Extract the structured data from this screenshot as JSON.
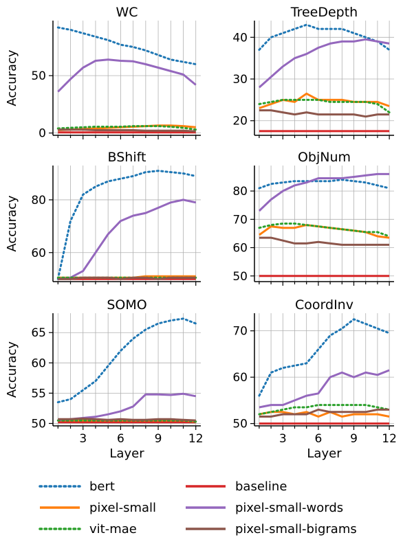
{
  "figure": {
    "y_label": "Accuracy",
    "x_label": "Layer"
  },
  "legend": {
    "entries": [
      {
        "name": "bert",
        "color": "#1f77b4",
        "dashed": true
      },
      {
        "name": "baseline",
        "color": "#d62728",
        "dashed": false
      },
      {
        "name": "pixel-small",
        "color": "#ff7f0e",
        "dashed": false
      },
      {
        "name": "pixel-small-words",
        "color": "#9467bd",
        "dashed": false
      },
      {
        "name": "vit-mae",
        "color": "#2ca02c",
        "dashed": true
      },
      {
        "name": "pixel-small-bigrams",
        "color": "#8c564b",
        "dashed": false
      }
    ]
  },
  "chart_data": [
    {
      "type": "line",
      "title": "WC",
      "x": [
        1,
        2,
        3,
        4,
        5,
        6,
        7,
        8,
        9,
        10,
        11,
        12
      ],
      "xlim": [
        0.6,
        12.4
      ],
      "ylim": [
        -2,
        98
      ],
      "yticks": [
        0,
        50
      ],
      "xticks": [
        3,
        6,
        9,
        12
      ],
      "xlabel": "",
      "ylabel": "Accuracy",
      "series": [
        {
          "name": "bert",
          "values": [
            92,
            90,
            87,
            84,
            81,
            77,
            75,
            72,
            68,
            64,
            62,
            60
          ]
        },
        {
          "name": "baseline",
          "values": [
            0.5,
            0.5,
            0.5,
            0.5,
            0.5,
            0.5,
            0.5,
            0.5,
            0.5,
            0.5,
            0.5,
            0.5
          ]
        },
        {
          "name": "pixel-small",
          "values": [
            2.5,
            3,
            3.5,
            4,
            4.5,
            5,
            5.5,
            6,
            6.5,
            6.5,
            6,
            5
          ]
        },
        {
          "name": "pixel-small-words",
          "values": [
            36,
            47,
            57,
            63,
            64,
            63,
            62.5,
            60,
            57,
            54,
            51,
            42
          ]
        },
        {
          "name": "vit-mae",
          "values": [
            4,
            4.5,
            5,
            5.5,
            5.5,
            5.5,
            6,
            6,
            6,
            5.5,
            4.5,
            3
          ]
        },
        {
          "name": "pixel-small-bigrams",
          "values": [
            3,
            3,
            3,
            2.5,
            2.5,
            2.5,
            2.5,
            2,
            2,
            2,
            2,
            1.5
          ]
        }
      ]
    },
    {
      "type": "line",
      "title": "TreeDepth",
      "x": [
        1,
        2,
        3,
        4,
        5,
        6,
        7,
        8,
        9,
        10,
        11,
        12
      ],
      "xlim": [
        0.6,
        12.4
      ],
      "ylim": [
        16.5,
        44
      ],
      "yticks": [
        20,
        30,
        40
      ],
      "xticks": [
        3,
        6,
        9,
        12
      ],
      "xlabel": "",
      "ylabel": "",
      "series": [
        {
          "name": "bert",
          "values": [
            37,
            40,
            41,
            42,
            43,
            42,
            42,
            42,
            41,
            40,
            39,
            37
          ]
        },
        {
          "name": "baseline",
          "values": [
            17.5,
            17.5,
            17.5,
            17.5,
            17.5,
            17.5,
            17.5,
            17.5,
            17.5,
            17.5,
            17.5,
            17.5
          ]
        },
        {
          "name": "pixel-small",
          "values": [
            23,
            24,
            25,
            24.5,
            26.5,
            25,
            25,
            25,
            24.5,
            24.5,
            24.5,
            23.5
          ]
        },
        {
          "name": "pixel-small-words",
          "values": [
            28,
            30.5,
            33,
            35,
            36,
            37.5,
            38.5,
            39,
            39,
            39.5,
            39,
            38.5
          ]
        },
        {
          "name": "vit-mae",
          "values": [
            24,
            24.5,
            25,
            25,
            25,
            25,
            24.5,
            24.5,
            24.5,
            24.5,
            24,
            22
          ]
        },
        {
          "name": "pixel-small-bigrams",
          "values": [
            22.5,
            22.5,
            22,
            21.5,
            22,
            21.5,
            21.5,
            21.5,
            21.5,
            21,
            21.5,
            21.5
          ]
        }
      ]
    },
    {
      "type": "line",
      "title": "BShift",
      "x": [
        1,
        2,
        3,
        4,
        5,
        6,
        7,
        8,
        9,
        10,
        11,
        12
      ],
      "xlim": [
        0.6,
        12.4
      ],
      "ylim": [
        49,
        93
      ],
      "yticks": [
        60,
        80
      ],
      "xticks": [
        3,
        6,
        9,
        12
      ],
      "xlabel": "",
      "ylabel": "Accuracy",
      "series": [
        {
          "name": "bert",
          "values": [
            50,
            72,
            82,
            85,
            87,
            88,
            89,
            90.5,
            91,
            90.5,
            90,
            89
          ]
        },
        {
          "name": "baseline",
          "values": [
            50,
            50,
            50,
            50,
            50,
            50,
            50,
            50,
            50,
            50,
            50,
            50
          ]
        },
        {
          "name": "pixel-small",
          "values": [
            50.5,
            50.5,
            50.5,
            50.5,
            50.5,
            50.5,
            50.5,
            51,
            51,
            51,
            51,
            51
          ]
        },
        {
          "name": "pixel-small-words",
          "values": [
            50,
            50.5,
            53,
            60,
            67,
            72,
            74,
            75,
            77,
            79,
            80,
            79
          ]
        },
        {
          "name": "vit-mae",
          "values": [
            50.5,
            50.5,
            50.5,
            50.5,
            50.5,
            50.5,
            50.5,
            50.5,
            50.5,
            50.5,
            50.5,
            50.5
          ]
        },
        {
          "name": "pixel-small-bigrams",
          "values": [
            50,
            50,
            50.5,
            50.5,
            50.5,
            50,
            50.5,
            50.5,
            50,
            50.5,
            50.5,
            50.5
          ]
        }
      ]
    },
    {
      "type": "line",
      "title": "ObjNum",
      "x": [
        1,
        2,
        3,
        4,
        5,
        6,
        7,
        8,
        9,
        10,
        11,
        12
      ],
      "xlim": [
        0.6,
        12.4
      ],
      "ylim": [
        48,
        89
      ],
      "yticks": [
        50,
        60,
        70,
        80
      ],
      "xticks": [
        3,
        6,
        9,
        12
      ],
      "xlabel": "",
      "ylabel": "",
      "series": [
        {
          "name": "bert",
          "values": [
            81,
            82.5,
            83,
            83.5,
            83.5,
            83.5,
            83.5,
            84,
            83.5,
            83,
            82,
            81
          ]
        },
        {
          "name": "baseline",
          "values": [
            50,
            50,
            50,
            50,
            50,
            50,
            50,
            50,
            50,
            50,
            50,
            50
          ]
        },
        {
          "name": "pixel-small",
          "values": [
            64.5,
            67.5,
            67,
            67,
            68,
            67.5,
            67,
            66.5,
            66,
            65.5,
            64,
            63.5
          ]
        },
        {
          "name": "pixel-small-words",
          "values": [
            73,
            77,
            80,
            82,
            83,
            84.5,
            84.5,
            84.5,
            85,
            85.5,
            86,
            86
          ]
        },
        {
          "name": "vit-mae",
          "values": [
            67,
            68,
            68.5,
            68.5,
            68,
            67.5,
            67,
            66.5,
            66,
            65.5,
            65.5,
            64
          ]
        },
        {
          "name": "pixel-small-bigrams",
          "values": [
            63.5,
            63.5,
            62.5,
            61.5,
            61.5,
            62,
            61.5,
            61,
            61,
            61,
            61,
            61
          ]
        }
      ]
    },
    {
      "type": "line",
      "title": "SOMO",
      "x": [
        1,
        2,
        3,
        4,
        5,
        6,
        7,
        8,
        9,
        10,
        11,
        12
      ],
      "xlim": [
        0.6,
        12.4
      ],
      "ylim": [
        49.6,
        68.2
      ],
      "yticks": [
        50,
        55,
        60,
        65
      ],
      "xticks": [
        3,
        6,
        9,
        12
      ],
      "xlabel": "Layer",
      "ylabel": "Accuracy",
      "series": [
        {
          "name": "bert",
          "values": [
            53.5,
            54,
            55.5,
            57,
            59.5,
            62,
            64,
            65.5,
            66.5,
            67,
            67.3,
            66.5
          ]
        },
        {
          "name": "baseline",
          "values": [
            50.2,
            50.2,
            50.2,
            50.2,
            50.2,
            50.2,
            50.2,
            50.2,
            50.2,
            50.2,
            50.2,
            50.2
          ]
        },
        {
          "name": "pixel-small",
          "values": [
            50.5,
            50.5,
            50.5,
            50.5,
            50.5,
            50.5,
            50.5,
            50.5,
            50.5,
            50.5,
            50.5,
            50.3
          ]
        },
        {
          "name": "pixel-small-words",
          "values": [
            50.5,
            50.7,
            50.9,
            51.1,
            51.5,
            52,
            52.8,
            54.8,
            54.8,
            54.7,
            54.9,
            54.5
          ]
        },
        {
          "name": "vit-mae",
          "values": [
            50.5,
            50.5,
            50.5,
            50.5,
            50.5,
            50.5,
            50.5,
            50.5,
            50.5,
            50.5,
            50.5,
            50.3
          ]
        },
        {
          "name": "pixel-small-bigrams",
          "values": [
            50.7,
            50.7,
            50.8,
            50.7,
            50.6,
            50.7,
            50.6,
            50.6,
            50.7,
            50.7,
            50.6,
            50.5
          ]
        }
      ]
    },
    {
      "type": "line",
      "title": "CoordInv",
      "x": [
        1,
        2,
        3,
        4,
        5,
        6,
        7,
        8,
        9,
        10,
        11,
        12
      ],
      "xlim": [
        0.6,
        12.4
      ],
      "ylim": [
        49.5,
        73.8
      ],
      "yticks": [
        50,
        60,
        70
      ],
      "xticks": [
        3,
        6,
        9,
        12
      ],
      "xlabel": "Layer",
      "ylabel": "",
      "series": [
        {
          "name": "bert",
          "values": [
            56,
            61,
            62,
            62.5,
            63,
            66,
            69,
            70.5,
            72.5,
            71.5,
            70.5,
            69.5
          ]
        },
        {
          "name": "baseline",
          "values": [
            50,
            50,
            50,
            50,
            50,
            50,
            50,
            50,
            50,
            50,
            50,
            50
          ]
        },
        {
          "name": "pixel-small",
          "values": [
            52,
            52.5,
            52.5,
            52,
            52.5,
            51.5,
            52.5,
            51.5,
            52,
            52,
            52,
            51.5
          ]
        },
        {
          "name": "pixel-small-words",
          "values": [
            53.5,
            54,
            54,
            55,
            56,
            56.5,
            60,
            61,
            60,
            61,
            60.5,
            61.5
          ]
        },
        {
          "name": "vit-mae",
          "values": [
            52,
            52.5,
            53,
            53.5,
            53.5,
            54,
            54,
            54,
            54,
            54,
            53.5,
            53
          ]
        },
        {
          "name": "pixel-small-bigrams",
          "values": [
            51.5,
            51.5,
            52,
            52,
            52,
            53,
            52.5,
            52.5,
            52.5,
            52.5,
            53,
            53
          ]
        }
      ]
    }
  ]
}
